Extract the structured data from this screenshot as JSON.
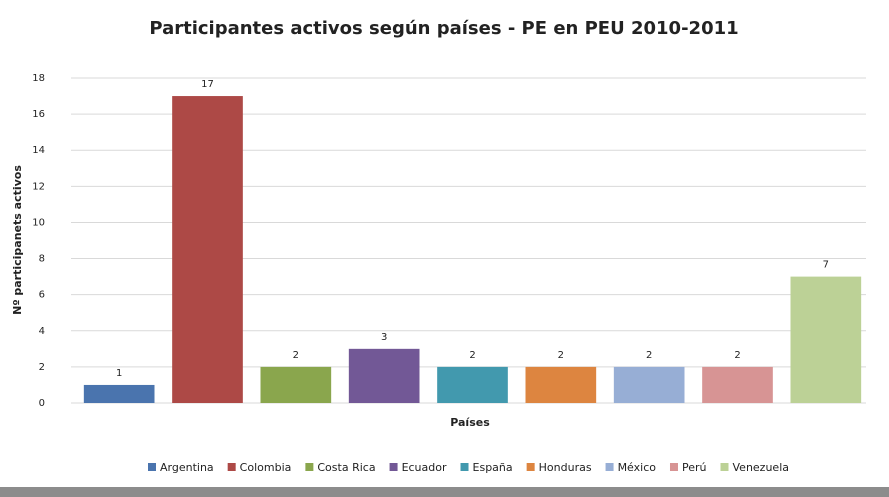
{
  "chart_data": {
    "type": "bar",
    "title": "Participantes activos según países - PE en PEU 2010-2011",
    "x_label": "Países",
    "y_label": "Nº participanets activos",
    "categories": [
      null
    ],
    "series": [
      {
        "name": "Argentina",
        "color": "#4a74ae",
        "values": [
          1
        ]
      },
      {
        "name": "Colombia",
        "color": "#ad4946",
        "values": [
          17
        ]
      },
      {
        "name": "Costa Rica",
        "color": "#8aa64d",
        "values": [
          2
        ]
      },
      {
        "name": "Ecuador",
        "color": "#725896",
        "values": [
          3
        ]
      },
      {
        "name": "España",
        "color": "#4299ae",
        "values": [
          2
        ]
      },
      {
        "name": "Honduras",
        "color": "#dd8540",
        "values": [
          2
        ]
      },
      {
        "name": "México",
        "color": "#97aed5",
        "values": [
          2
        ]
      },
      {
        "name": "Perú",
        "color": "#d79494",
        "values": [
          2
        ]
      },
      {
        "name": "Venezuela",
        "color": "#bcd196",
        "values": [
          7
        ]
      }
    ],
    "ylim": [
      0,
      18
    ],
    "yticks": [
      0,
      2,
      4,
      6,
      8,
      10,
      12,
      14,
      16,
      18
    ],
    "grid": true,
    "legend": "bottom"
  }
}
